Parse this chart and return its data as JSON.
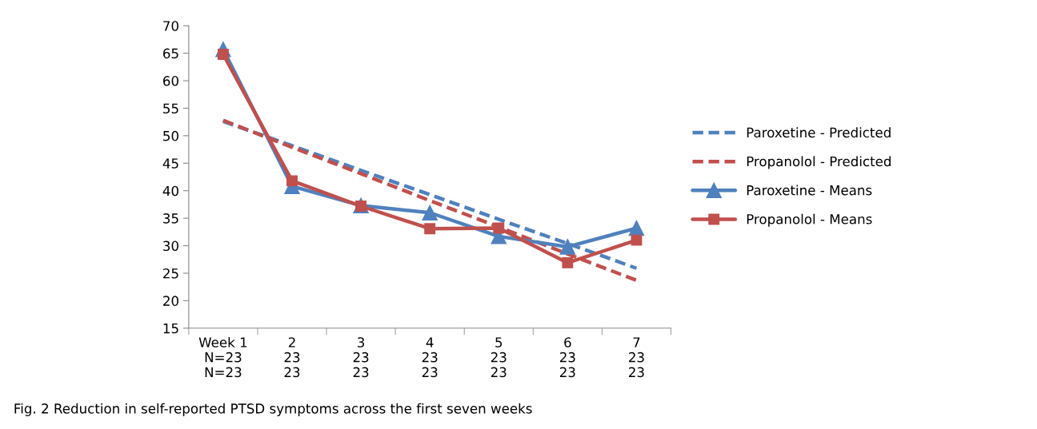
{
  "chart_data": {
    "type": "line",
    "categories": [
      "Week 1\nN=23\nN=23",
      "2\n23\n23",
      "3\n23\n23",
      "4\n23\n23",
      "5\n23\n23",
      "6\n23\n23",
      "7\n23\n23"
    ],
    "series": [
      {
        "name": "Paroxetine - Predicted",
        "color": "#4f81bd",
        "line_style": "dashed",
        "marker": "none",
        "values": [
          52.6,
          48.2,
          43.7,
          39.3,
          34.8,
          30.4,
          25.9
        ]
      },
      {
        "name": "Propanolol - Predicted",
        "color": "#c0504d",
        "line_style": "dashed",
        "marker": "none",
        "values": [
          52.8,
          47.9,
          43.1,
          38.2,
          33.4,
          28.5,
          23.7
        ]
      },
      {
        "name": "Paroxetine - Means",
        "color": "#4f81bd",
        "line_style": "solid",
        "marker": "triangle",
        "values": [
          65.7,
          40.8,
          37.3,
          36.0,
          31.7,
          29.8,
          33.2
        ]
      },
      {
        "name": "Propanolol - Means",
        "color": "#c0504d",
        "line_style": "solid",
        "marker": "square",
        "values": [
          64.8,
          41.8,
          37.2,
          33.1,
          33.2,
          26.9,
          31.0
        ]
      }
    ],
    "ylim": [
      15,
      70
    ],
    "yticks": [
      15,
      20,
      25,
      30,
      35,
      40,
      45,
      50,
      55,
      60,
      65,
      70
    ],
    "grid": false,
    "legend": "right",
    "annotations": [
      "Fig. 2 Reduction in self-reported PTSD symptoms across the first seven weeks"
    ]
  }
}
